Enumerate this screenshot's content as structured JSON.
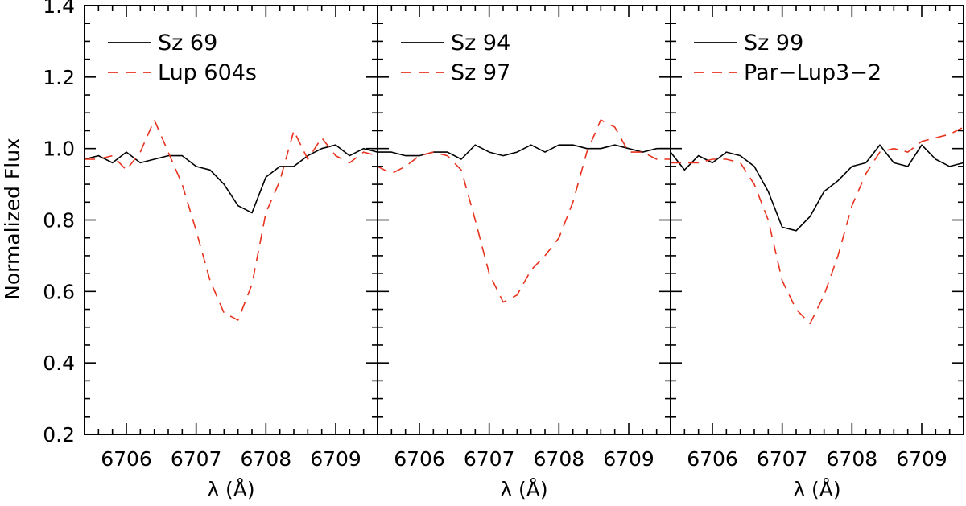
{
  "chart_data": {
    "type": "line",
    "ylabel": "Normalized Flux",
    "ylim": [
      0.2,
      1.4
    ],
    "yticks": [
      "0.2",
      "0.4",
      "0.6",
      "0.8",
      "1.0",
      "1.2",
      "1.4"
    ],
    "xlabel": "λ (Å)",
    "xlim": [
      6705.4,
      6709.6
    ],
    "xticks": [
      "6706",
      "6707",
      "6708",
      "6709"
    ],
    "colors": {
      "solid": "#000000",
      "dashed": "#e8321e"
    },
    "panels": [
      {
        "series": [
          {
            "name": "Sz 69",
            "style": "solid",
            "x": [
              6705.4,
              6705.6,
              6705.8,
              6706.0,
              6706.2,
              6706.4,
              6706.6,
              6706.8,
              6707.0,
              6707.2,
              6707.4,
              6707.6,
              6707.8,
              6708.0,
              6708.2,
              6708.4,
              6708.6,
              6708.8,
              6709.0,
              6709.2,
              6709.4,
              6709.6
            ],
            "y": [
              0.97,
              0.98,
              0.96,
              0.99,
              0.96,
              0.97,
              0.98,
              0.98,
              0.95,
              0.94,
              0.9,
              0.84,
              0.82,
              0.92,
              0.95,
              0.95,
              0.98,
              1.0,
              1.01,
              0.98,
              1.0,
              0.99
            ]
          },
          {
            "name": "Lup 604s",
            "style": "dashed",
            "x": [
              6705.4,
              6705.6,
              6705.8,
              6706.0,
              6706.2,
              6706.4,
              6706.6,
              6706.8,
              6707.0,
              6707.2,
              6707.4,
              6707.6,
              6707.8,
              6708.0,
              6708.2,
              6708.4,
              6708.6,
              6708.8,
              6709.0,
              6709.2,
              6709.4,
              6709.6
            ],
            "y": [
              0.97,
              0.97,
              0.98,
              0.94,
              0.99,
              1.08,
              0.99,
              0.9,
              0.77,
              0.63,
              0.54,
              0.52,
              0.62,
              0.82,
              0.91,
              1.05,
              0.97,
              1.03,
              0.98,
              0.96,
              0.99,
              0.98
            ]
          }
        ],
        "legend": [
          "Sz 69",
          "Lup 604s"
        ]
      },
      {
        "series": [
          {
            "name": "Sz 94",
            "style": "solid",
            "x": [
              6705.4,
              6705.6,
              6705.8,
              6706.0,
              6706.2,
              6706.4,
              6706.6,
              6706.8,
              6707.0,
              6707.2,
              6707.4,
              6707.6,
              6707.8,
              6708.0,
              6708.2,
              6708.4,
              6708.6,
              6708.8,
              6709.0,
              6709.2,
              6709.4,
              6709.6
            ],
            "y": [
              0.99,
              0.99,
              0.98,
              0.98,
              0.99,
              0.99,
              0.97,
              1.01,
              0.99,
              0.98,
              0.99,
              1.01,
              0.99,
              1.01,
              1.01,
              1.0,
              1.0,
              1.01,
              1.0,
              0.99,
              1.0,
              1.0
            ]
          },
          {
            "name": "Sz 97",
            "style": "dashed",
            "x": [
              6705.4,
              6705.6,
              6705.8,
              6706.0,
              6706.2,
              6706.4,
              6706.6,
              6706.8,
              6707.0,
              6707.2,
              6707.4,
              6707.6,
              6707.8,
              6708.0,
              6708.2,
              6708.4,
              6708.6,
              6708.8,
              6709.0,
              6709.2,
              6709.4,
              6709.6
            ],
            "y": [
              0.95,
              0.93,
              0.95,
              0.98,
              0.99,
              0.98,
              0.94,
              0.8,
              0.65,
              0.57,
              0.59,
              0.66,
              0.7,
              0.75,
              0.85,
              0.99,
              1.08,
              1.06,
              0.99,
              0.99,
              0.97,
              0.97
            ]
          }
        ],
        "legend": [
          "Sz 94",
          "Sz 97"
        ]
      },
      {
        "series": [
          {
            "name": "Sz 99",
            "style": "solid",
            "x": [
              6705.4,
              6705.6,
              6705.8,
              6706.0,
              6706.2,
              6706.4,
              6706.6,
              6706.8,
              6707.0,
              6707.2,
              6707.4,
              6707.6,
              6707.8,
              6708.0,
              6708.2,
              6708.4,
              6708.6,
              6708.8,
              6709.0,
              6709.2,
              6709.4,
              6709.6
            ],
            "y": [
              0.99,
              0.94,
              0.98,
              0.96,
              0.99,
              0.98,
              0.95,
              0.88,
              0.78,
              0.77,
              0.81,
              0.88,
              0.91,
              0.95,
              0.96,
              1.01,
              0.96,
              0.95,
              1.01,
              0.97,
              0.95,
              0.96
            ]
          },
          {
            "name": "Par-Lup3-2",
            "style": "dashed",
            "x": [
              6705.4,
              6705.6,
              6705.8,
              6706.0,
              6706.2,
              6706.4,
              6706.6,
              6706.8,
              6707.0,
              6707.2,
              6707.4,
              6707.6,
              6707.8,
              6708.0,
              6708.2,
              6708.4,
              6708.6,
              6708.8,
              6709.0,
              6709.2,
              6709.4,
              6709.6
            ],
            "y": [
              0.96,
              0.96,
              0.96,
              0.97,
              0.97,
              0.96,
              0.9,
              0.8,
              0.63,
              0.55,
              0.51,
              0.59,
              0.7,
              0.84,
              0.93,
              0.99,
              1.0,
              0.99,
              1.02,
              1.03,
              1.04,
              1.06
            ]
          }
        ],
        "legend": [
          "Sz 99",
          "Par−Lup3−2"
        ]
      }
    ]
  }
}
